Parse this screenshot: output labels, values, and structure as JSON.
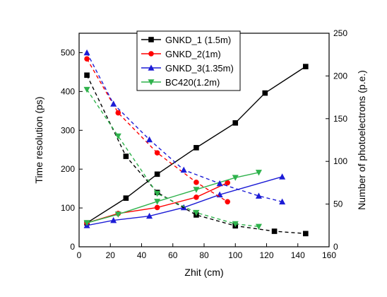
{
  "chart_data": {
    "type": "line",
    "title": "",
    "xlabel": "Zhit (cm)",
    "ylabel": "Time resolution (ps)",
    "y2label": "Number of photoelectrons (p.e.)",
    "xlim": [
      0,
      160
    ],
    "ylim": [
      0,
      550
    ],
    "y2lim": [
      0,
      250
    ],
    "xticks": [
      0,
      20,
      40,
      60,
      80,
      100,
      120,
      140,
      160
    ],
    "yticks": [
      0,
      100,
      200,
      300,
      400,
      500
    ],
    "y2ticks": [
      0,
      50,
      100,
      150,
      200,
      250
    ],
    "grid": false,
    "legend_position": "top-center",
    "series": [
      {
        "name": "GNKD_1 (1.5m)",
        "axis": "right",
        "style": "solid",
        "marker": "square",
        "color": "#000000",
        "x": [
          5,
          30,
          50,
          75,
          100,
          119,
          145
        ],
        "y": [
          28,
          57,
          85,
          116,
          145,
          180,
          211
        ]
      },
      {
        "name": "GNKD_2(1m)",
        "axis": "right",
        "style": "solid",
        "marker": "circle",
        "color": "#ff0000",
        "x": [
          5,
          25,
          50,
          75,
          95
        ],
        "y": [
          28,
          39,
          46,
          58,
          75
        ]
      },
      {
        "name": "GNKD_3(1.35m)",
        "axis": "right",
        "style": "solid",
        "marker": "triangle-up",
        "color": "#1c1cd6",
        "x": [
          5,
          22,
          45,
          67,
          90,
          130
        ],
        "y": [
          25,
          31,
          36,
          46,
          61,
          82
        ]
      },
      {
        "name": "BC420(1.2m)",
        "axis": "right",
        "style": "solid",
        "marker": "triangle-down",
        "color": "#2fb24c",
        "x": [
          5,
          25,
          50,
          75,
          100,
          115
        ],
        "y": [
          28,
          38,
          53,
          67,
          81,
          87
        ]
      },
      {
        "name": "GNKD_1 (1.5m)",
        "axis": "left",
        "style": "dashed",
        "marker": "square",
        "color": "#000000",
        "x": [
          5,
          30,
          50,
          75,
          100,
          125,
          145
        ],
        "y": [
          442,
          233,
          140,
          82,
          54,
          40,
          34
        ]
      },
      {
        "name": "GNKD_2(1m)",
        "axis": "left",
        "style": "dashed",
        "marker": "circle",
        "color": "#ff0000",
        "x": [
          5,
          25,
          50,
          75,
          95
        ],
        "y": [
          484,
          345,
          242,
          166,
          116
        ]
      },
      {
        "name": "GNKD_3(1.35m)",
        "axis": "left",
        "style": "dashed",
        "marker": "triangle-up",
        "color": "#1c1cd6",
        "x": [
          5,
          22,
          45,
          67,
          90,
          115,
          130
        ],
        "y": [
          500,
          368,
          276,
          198,
          163,
          131,
          116
        ]
      },
      {
        "name": "BC420(1.2m)",
        "axis": "left",
        "style": "dashed",
        "marker": "triangle-down",
        "color": "#2fb24c",
        "x": [
          5,
          25,
          50,
          75,
          100,
          115
        ],
        "y": [
          405,
          285,
          137,
          88,
          59,
          52
        ]
      }
    ]
  }
}
